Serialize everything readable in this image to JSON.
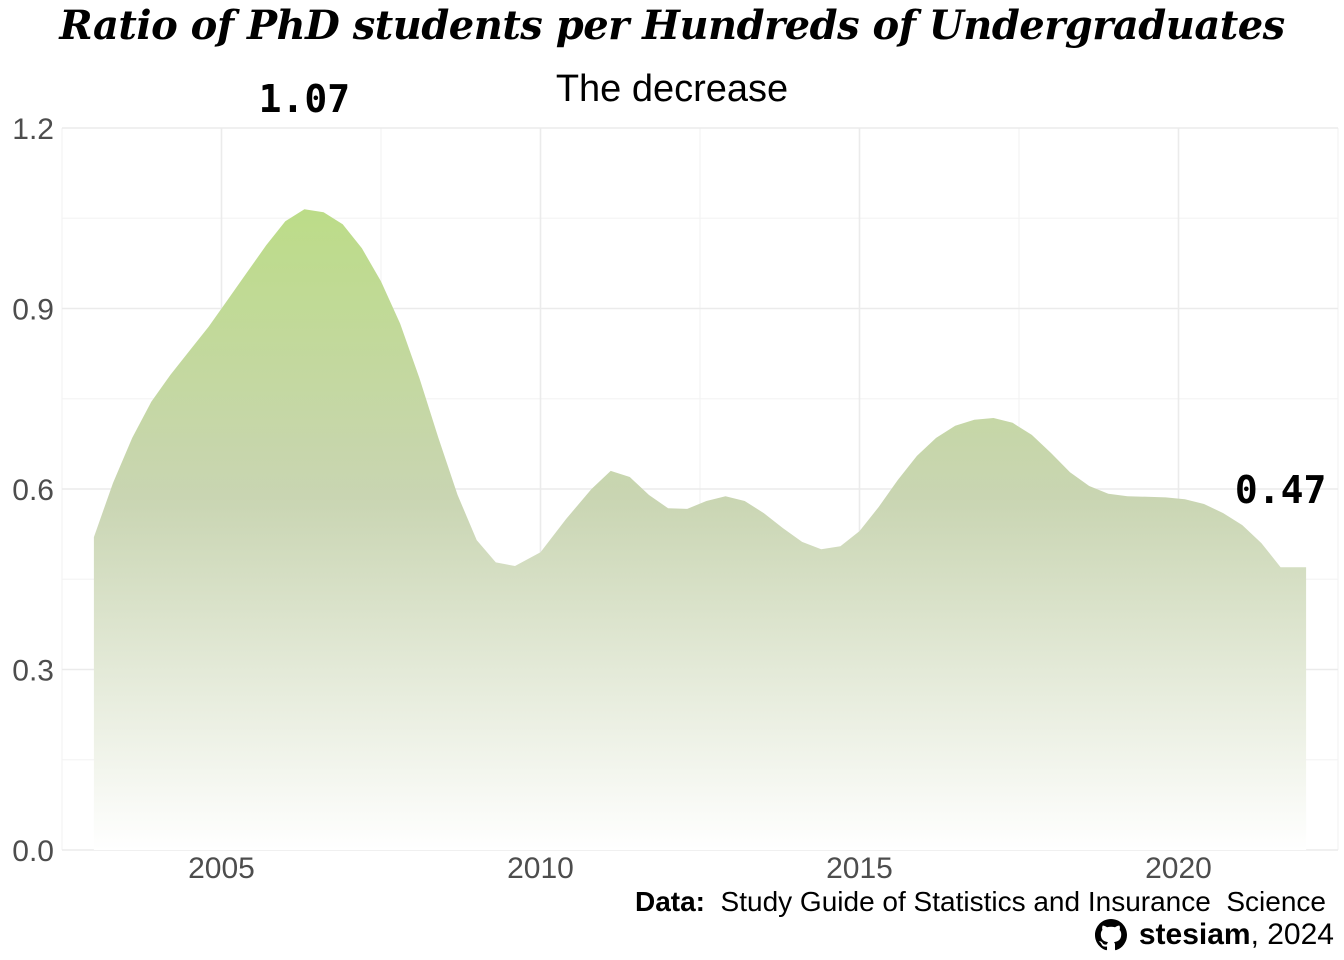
{
  "title": "Ratio of PhD students per Hundreds of Undergraduates",
  "subtitle": "The decrease",
  "caption": {
    "data_label": "Data:",
    "data_source": "Study Guide of Statistics and Insurance  Science",
    "author": "stesiam",
    "year": ", 2024",
    "icon": "github-icon"
  },
  "colors": {
    "fill_top": "#bcdc88",
    "fill_mid": "#c9d5b2",
    "fill_bottom": "#ffffff",
    "grid": "#ebebeb",
    "tick_text": "#4d4d4d"
  },
  "chart_data": {
    "type": "area",
    "title": "Ratio of PhD students per Hundreds of Undergraduates",
    "subtitle": "The decrease",
    "xlabel": "",
    "ylabel": "",
    "xlim": [
      2002.5,
      2022.5
    ],
    "ylim": [
      0,
      1.2
    ],
    "x_ticks": [
      2005,
      2010,
      2015,
      2020
    ],
    "y_ticks": [
      0.0,
      0.3,
      0.6,
      0.9,
      1.2
    ],
    "y_tick_labels": [
      "0.0",
      "0.3",
      "0.6",
      "0.9",
      "1.2"
    ],
    "grid": true,
    "x": [
      2003.0,
      2003.3,
      2003.6,
      2003.9,
      2004.2,
      2004.5,
      2004.8,
      2005.1,
      2005.4,
      2005.7,
      2006.0,
      2006.3,
      2006.6,
      2006.9,
      2007.2,
      2007.5,
      2007.8,
      2008.1,
      2008.4,
      2008.7,
      2009.0,
      2009.3,
      2009.6,
      2010.0,
      2010.4,
      2010.8,
      2011.1,
      2011.4,
      2011.7,
      2012.0,
      2012.3,
      2012.6,
      2012.9,
      2013.2,
      2013.5,
      2013.8,
      2014.1,
      2014.4,
      2014.7,
      2015.0,
      2015.3,
      2015.6,
      2015.9,
      2016.2,
      2016.5,
      2016.8,
      2017.1,
      2017.4,
      2017.7,
      2018.0,
      2018.3,
      2018.6,
      2018.9,
      2019.2,
      2019.5,
      2019.8,
      2020.1,
      2020.4,
      2020.7,
      2021.0,
      2021.3,
      2021.6,
      2021.9,
      2022.0
    ],
    "y": [
      0.52,
      0.61,
      0.685,
      0.745,
      0.79,
      0.83,
      0.87,
      0.915,
      0.96,
      1.005,
      1.045,
      1.065,
      1.06,
      1.04,
      1.0,
      0.945,
      0.875,
      0.785,
      0.685,
      0.59,
      0.515,
      0.478,
      0.472,
      0.495,
      0.55,
      0.6,
      0.63,
      0.62,
      0.59,
      0.568,
      0.567,
      0.58,
      0.588,
      0.58,
      0.56,
      0.535,
      0.512,
      0.5,
      0.505,
      0.53,
      0.57,
      0.615,
      0.655,
      0.685,
      0.705,
      0.715,
      0.718,
      0.71,
      0.69,
      0.66,
      0.628,
      0.605,
      0.592,
      0.588,
      0.587,
      0.586,
      0.583,
      0.575,
      0.56,
      0.54,
      0.51,
      0.47,
      0.47,
      0.47
    ],
    "annotations": [
      {
        "x": 2006.3,
        "y": 1.25,
        "label": "1.07"
      },
      {
        "x": 2021.6,
        "y": 0.6,
        "label": "0.47"
      }
    ]
  }
}
